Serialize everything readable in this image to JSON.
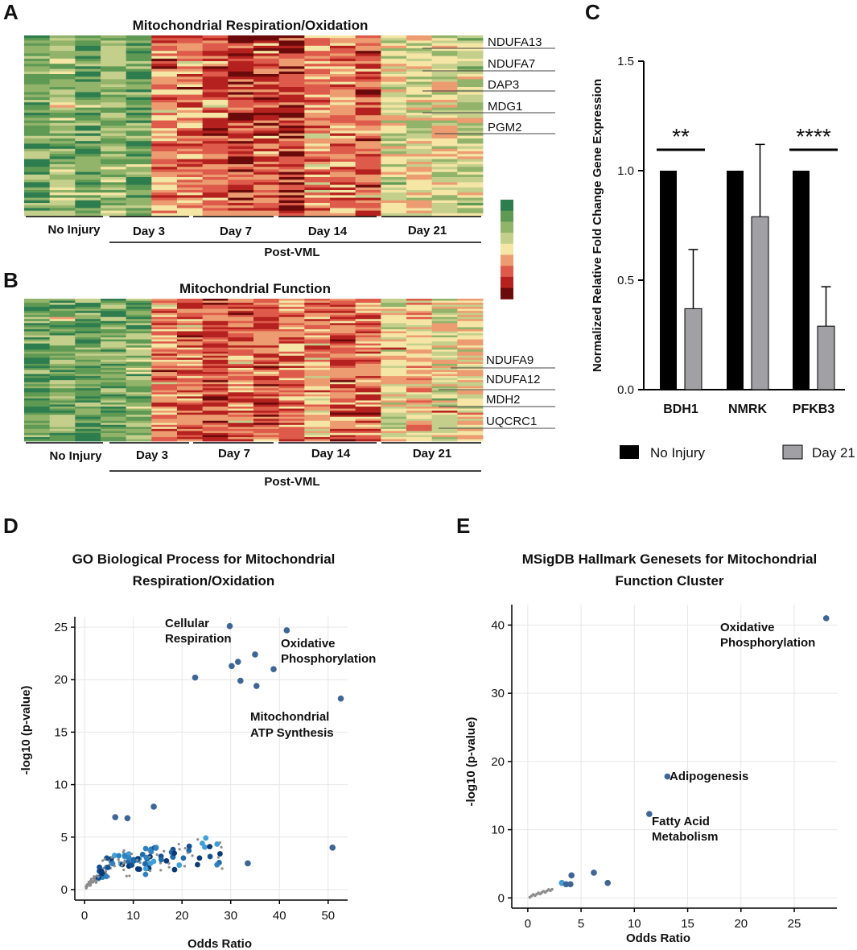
{
  "panel_labels": [
    "A",
    "B",
    "C",
    "D",
    "E"
  ],
  "heatmaps": [
    {
      "title": "Mitochondrial Respiration/Oxidation",
      "groups": [
        "No Injury",
        "Day 3",
        "Day 7",
        "Day 14",
        "Day 21"
      ],
      "post_label": "Post-VML",
      "genes": [
        "NDUFA13",
        "NDUFA7",
        "DAP3",
        "MDG1",
        "PGM2"
      ]
    },
    {
      "title": "Mitochondrial Function",
      "groups": [
        "No Injury",
        "Day 3",
        "Day 7",
        "Day 14",
        "Day 21"
      ],
      "post_label": "Post-VML",
      "genes": [
        "NDUFA9",
        "NDUFA12",
        "MDH2",
        "UQCRC1"
      ]
    }
  ],
  "colorscale": [
    "#2e7d4f",
    "#5f9a55",
    "#92b36a",
    "#c4cf8c",
    "#f5e6a6",
    "#ec9c70",
    "#de5a4a",
    "#b4211e",
    "#6b0a0a"
  ],
  "chart_data": [
    {
      "type": "bar",
      "categories": [
        "BDH1",
        "NMRK",
        "PFKB3"
      ],
      "series": [
        {
          "name": "No Injury",
          "values": [
            1.0,
            1.0,
            1.0
          ],
          "color": "#000000"
        },
        {
          "name": "Day 21",
          "values": [
            0.37,
            0.79,
            0.29
          ],
          "errors": [
            0.27,
            0.33,
            0.18
          ],
          "color": "#a0a0a5"
        }
      ],
      "ylabel": "Normalized Relative Fold Change Gene Expression",
      "ylim": [
        0,
        1.5
      ],
      "yticks": [
        "0.0",
        "0.5",
        "1.0",
        "1.5"
      ],
      "significance": [
        "**",
        "",
        "****"
      ],
      "legend": [
        "No Injury",
        "Day 21"
      ]
    },
    {
      "type": "scatter",
      "title": "GO Biological Process for Mitochondrial Respiration/Oxidation",
      "xlabel": "Odds Ratio",
      "ylabel": "-log10 (p-value)",
      "xlim": [
        -2,
        54
      ],
      "ylim": [
        -1,
        26
      ],
      "xticks": [
        "0",
        "10",
        "20",
        "30",
        "40",
        "50"
      ],
      "yticks": [
        "0",
        "5",
        "10",
        "15",
        "20",
        "25"
      ],
      "highlight_points": [
        {
          "x": 29.8,
          "y": 25.1
        },
        {
          "x": 41.5,
          "y": 24.7
        },
        {
          "x": 35.0,
          "y": 22.4
        },
        {
          "x": 31.5,
          "y": 21.7
        },
        {
          "x": 30.2,
          "y": 21.3
        },
        {
          "x": 38.8,
          "y": 21.0
        },
        {
          "x": 22.7,
          "y": 20.2
        },
        {
          "x": 32.0,
          "y": 19.9
        },
        {
          "x": 35.3,
          "y": 19.4
        },
        {
          "x": 52.6,
          "y": 18.2
        },
        {
          "x": 14.2,
          "y": 7.9
        },
        {
          "x": 6.3,
          "y": 6.9
        },
        {
          "x": 8.8,
          "y": 6.8
        },
        {
          "x": 50.9,
          "y": 4.0
        },
        {
          "x": 33.5,
          "y": 2.5
        }
      ],
      "annotations": [
        {
          "text": "Cellular Respiration",
          "lines": [
            "Cellular",
            "Respiration"
          ]
        },
        {
          "text": "Oxidative Phosphorylation",
          "lines": [
            "Oxidative",
            "Phosphorylation"
          ]
        },
        {
          "text": "Mitochondrial ATP Synthesis",
          "lines": [
            "Mitochondrial",
            "ATP Synthesis"
          ]
        }
      ]
    },
    {
      "type": "scatter",
      "title": "MSigDB Hallmark Genesets for Mitochondrial Function Cluster",
      "xlabel": "Odds Ratio",
      "ylabel": "-log10 (p-value)",
      "xlim": [
        -1.5,
        29
      ],
      "ylim": [
        -1.5,
        43
      ],
      "xticks": [
        "0",
        "5",
        "10",
        "15",
        "20",
        "25"
      ],
      "yticks": [
        "0",
        "10",
        "20",
        "30",
        "40"
      ],
      "points": [
        {
          "x": 28.0,
          "y": 41.0
        },
        {
          "x": 13.1,
          "y": 17.8
        },
        {
          "x": 11.4,
          "y": 12.3
        },
        {
          "x": 6.2,
          "y": 3.7
        },
        {
          "x": 7.5,
          "y": 2.2
        },
        {
          "x": 4.1,
          "y": 3.3
        },
        {
          "x": 3.2,
          "y": 2.2
        },
        {
          "x": 3.6,
          "y": 2.0
        },
        {
          "x": 4.0,
          "y": 2.0
        }
      ],
      "annotations": [
        {
          "text": "Oxidative Phosphorylation",
          "lines": [
            "Oxidative",
            "Phosphorylation"
          ]
        },
        {
          "text": "Adipogenesis",
          "lines": [
            "Adipogenesis"
          ]
        },
        {
          "text": "Fatty Acid Metabolism",
          "lines": [
            "Fatty Acid",
            "Metabolism"
          ]
        }
      ]
    }
  ]
}
